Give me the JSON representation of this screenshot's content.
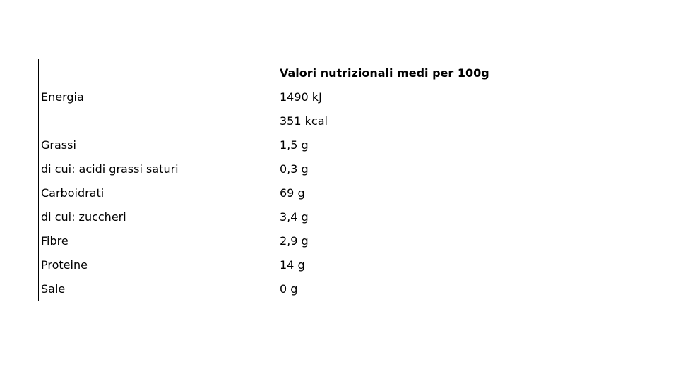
{
  "table": {
    "header": [
      "",
      "Valori nutrizionali medi per 100g"
    ],
    "rows": [
      [
        "Energia",
        "1490 kJ"
      ],
      [
        "",
        "351 kcal"
      ],
      [
        "Grassi",
        "1,5 g"
      ],
      [
        "di cui: acidi grassi saturi",
        "0,3 g"
      ],
      [
        "Carboidrati",
        "69 g"
      ],
      [
        "di cui: zuccheri",
        "3,4 g"
      ],
      [
        "Fibre",
        "2,9 g"
      ],
      [
        "Proteine",
        "14 g"
      ],
      [
        "Sale",
        "0 g"
      ]
    ]
  }
}
